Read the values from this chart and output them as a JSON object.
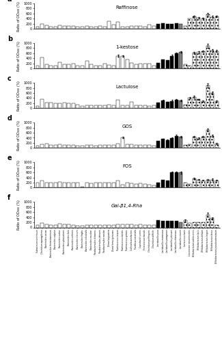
{
  "titles": [
    "Raffinose",
    "1-kestose",
    "Lactulose",
    "GOS",
    "FOS",
    "Gal-β1,4-Rha"
  ],
  "panel_labels": [
    "a",
    "b",
    "c",
    "d",
    "e",
    "f"
  ],
  "species": [
    "Eubacterium ventriosum",
    "Clostridium asparagiforme",
    "Bacteroides caccae",
    "Bacteroides thetaiotaomicron",
    "Bacteroides vulgatus",
    "Bacteroides ovatus",
    "Bacteroides xylanisolvens",
    "Bacteroides dorei",
    "Bacteroides uniformis",
    "Bacteroides stercoris",
    "Bacteroides fragilis",
    "Bacteroides intestinalis",
    "Bacteroides meridian",
    "Parabacteroides distasonis",
    "Parabacteroides johnsonii",
    "Parabacteroides merdae",
    "Dorea longicatena",
    "Dorea formicigenerans",
    "Ruminococcus torques",
    "Ruminococcus lactaris",
    "Ruminococcus gnavus",
    "Collinsella aerofaciens",
    "Toxalbosa intestinalis",
    "Coprobacter comes",
    "Enterococcus faecalis",
    "Clostridium perfringens",
    "Clostridium difficile",
    "Lactobacillus pura",
    "Lactobacillus mammosus",
    "Lactobacillus paraganser",
    "Lactobacillus johnsonii",
    "Lactobacillus rhamnosus",
    "Lactobacillus reuteri",
    "Lactococcus lactis",
    "Leuconostoc mesenteroides",
    "Bifidobacterium adolescentis",
    "Bifidobacterium lactis",
    "Bifidobacterium bifidum",
    "Bifidobacterium longum",
    "Bifidobacterium breve",
    "Bifidobacterium pseudocatenulatum"
  ],
  "raffinose": [
    100,
    200,
    150,
    100,
    100,
    150,
    130,
    120,
    110,
    80,
    90,
    110,
    100,
    100,
    110,
    100,
    310,
    170,
    270,
    100,
    90,
    120,
    120,
    120,
    80,
    180,
    130,
    200,
    220,
    200,
    200,
    220,
    200,
    130,
    400,
    480,
    430,
    420,
    570,
    470,
    490
  ],
  "kestose": [
    120,
    450,
    170,
    130,
    130,
    250,
    170,
    160,
    200,
    120,
    130,
    300,
    160,
    120,
    130,
    200,
    140,
    130,
    500,
    500,
    370,
    230,
    180,
    200,
    200,
    200,
    130,
    230,
    360,
    330,
    500,
    600,
    650,
    170,
    120,
    630,
    650,
    680,
    900,
    700,
    680
  ],
  "lactulose": [
    80,
    370,
    230,
    220,
    190,
    200,
    220,
    190,
    200,
    150,
    100,
    130,
    130,
    120,
    120,
    130,
    150,
    110,
    340,
    130,
    120,
    250,
    110,
    130,
    120,
    100,
    130,
    220,
    300,
    240,
    280,
    330,
    300,
    140,
    410,
    450,
    350,
    280,
    900,
    600,
    280
  ],
  "gos": [
    100,
    150,
    160,
    120,
    110,
    140,
    130,
    110,
    110,
    90,
    100,
    120,
    110,
    90,
    110,
    130,
    130,
    110,
    160,
    420,
    150,
    140,
    120,
    130,
    120,
    110,
    100,
    270,
    350,
    310,
    380,
    470,
    440,
    130,
    150,
    430,
    380,
    430,
    700,
    480,
    170
  ],
  "fos": [
    200,
    270,
    210,
    190,
    190,
    230,
    200,
    200,
    200,
    200,
    50,
    200,
    170,
    200,
    200,
    190,
    200,
    190,
    290,
    130,
    200,
    170,
    150,
    160,
    150,
    130,
    100,
    200,
    310,
    290,
    600,
    590,
    590,
    200,
    150,
    360,
    320,
    290,
    310,
    320,
    290
  ],
  "galrha": [
    100,
    180,
    120,
    100,
    90,
    150,
    120,
    110,
    100,
    80,
    80,
    100,
    90,
    100,
    100,
    90,
    100,
    90,
    120,
    110,
    110,
    110,
    100,
    110,
    100,
    100,
    100,
    270,
    260,
    250,
    250,
    260,
    200,
    270,
    180,
    200,
    200,
    200,
    500,
    360,
    100
  ],
  "ylim": [
    0,
    1000
  ],
  "yticks": [
    0,
    200,
    400,
    600,
    800,
    1000
  ],
  "ylabel": "Ratio of OD$_{600}$ (%)",
  "n_white": 27,
  "n_black": 5,
  "n_gray": 1,
  "n_dotted": 8,
  "error_bars": {
    "0": {
      "35": 30,
      "36": 25,
      "37": 20,
      "38": 50,
      "39": 40,
      "40": 30
    },
    "1": {
      "18": 40,
      "19": 30,
      "30": 40,
      "31": 30,
      "32": 20,
      "35": 30,
      "36": 40,
      "37": 20,
      "38": 80,
      "39": 50,
      "40": 40
    },
    "2": {
      "28": 30,
      "29": 20,
      "30": 40,
      "31": 30,
      "32": 30,
      "34": 20,
      "35": 30,
      "36": 20,
      "37": 30,
      "38": 80,
      "39": 50,
      "40": 30
    },
    "3": {
      "19": 30,
      "28": 20,
      "29": 20,
      "30": 30,
      "31": 40,
      "32": 30,
      "35": 30,
      "36": 20,
      "37": 30,
      "38": 50,
      "39": 30,
      "40": 20
    },
    "4": {
      "30": 40,
      "31": 40,
      "32": 40,
      "35": 30,
      "36": 20,
      "37": 20,
      "38": 30,
      "39": 30,
      "40": 20
    },
    "5": {
      "33": 30,
      "38": 80,
      "39": 40
    }
  }
}
